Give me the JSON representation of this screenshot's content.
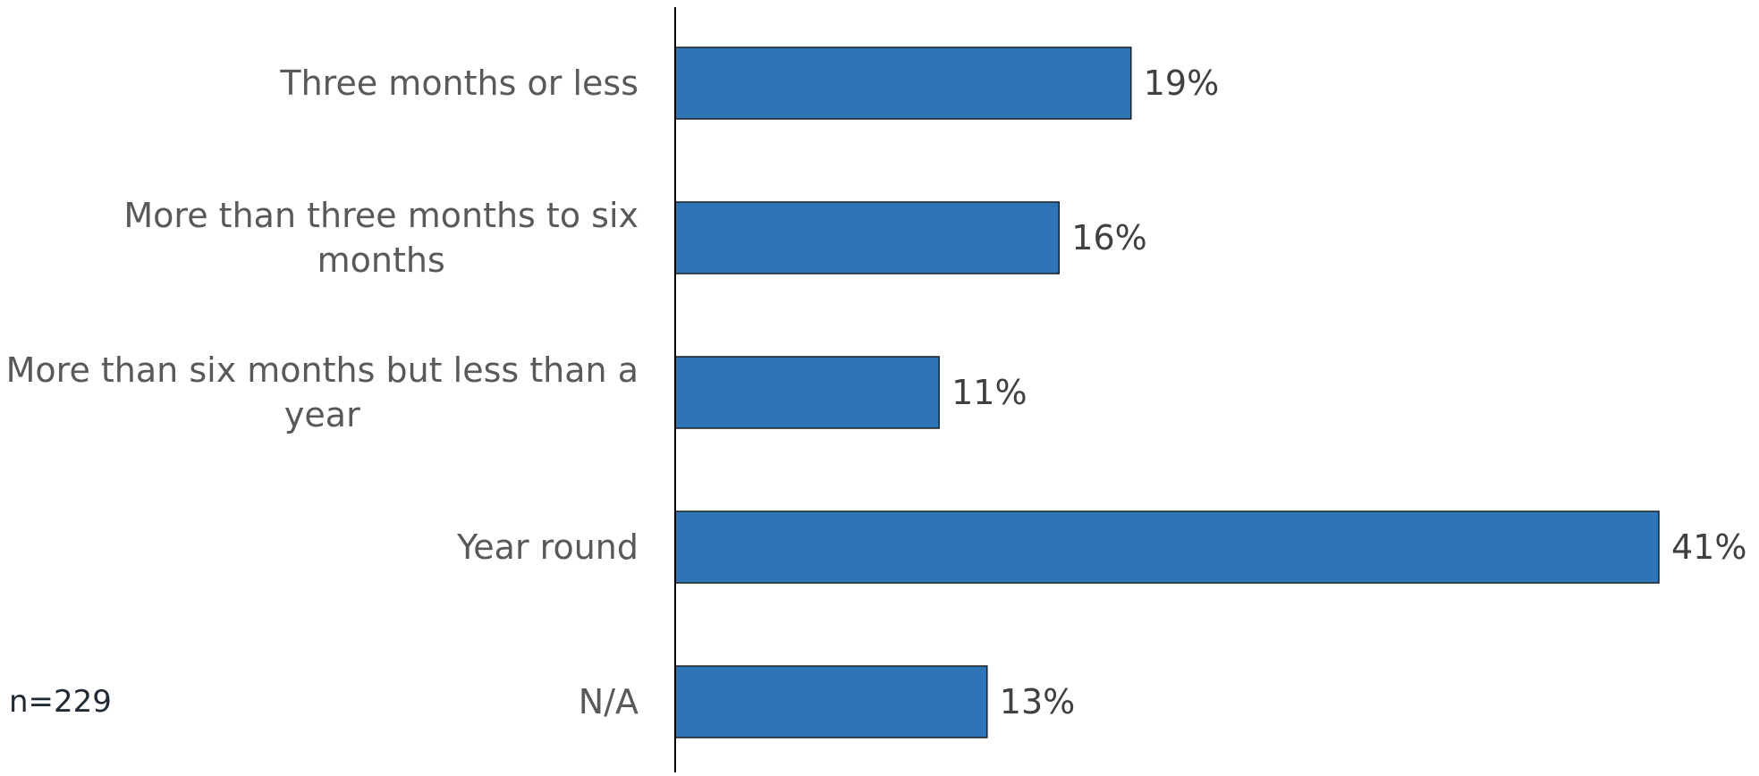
{
  "chart_data": {
    "type": "bar",
    "orientation": "horizontal",
    "categories": [
      "Three months or less",
      "More than three months to six months",
      "More than six months but less than a year",
      "Year round",
      "N/A"
    ],
    "category_label_lines": [
      [
        "Three months or less"
      ],
      [
        "More than three months to six",
        "months"
      ],
      [
        "More than six months but less than a",
        "year"
      ],
      [
        "Year round"
      ],
      [
        "N/A"
      ]
    ],
    "values": [
      19,
      16,
      11,
      41,
      13
    ],
    "value_labels": [
      "19%",
      "16%",
      "11%",
      "41%",
      "13%"
    ],
    "unit": "%",
    "xlim": [
      0,
      41
    ],
    "grid": false,
    "legend": "none",
    "colors": {
      "bar_fill": "#2e75b6",
      "bar_stroke": "#1f1f1f",
      "category_text": "#595959",
      "value_text": "#404040",
      "axis": "#000000"
    }
  },
  "sample_note": "n=229"
}
